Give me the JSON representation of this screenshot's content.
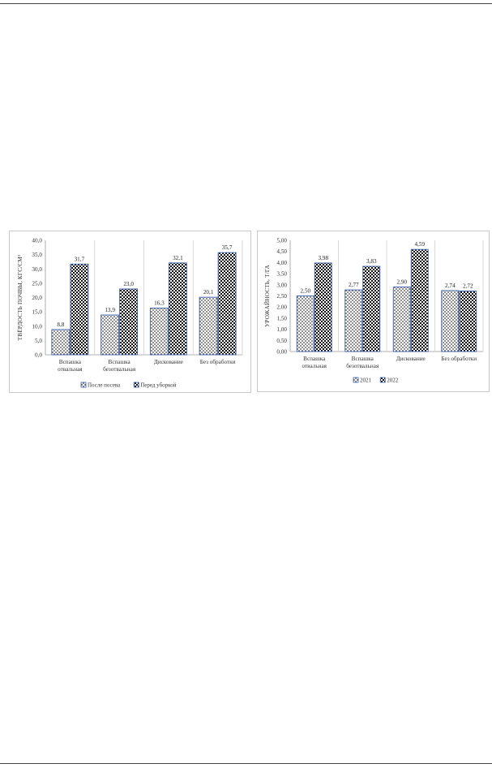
{
  "chart_data": [
    {
      "type": "bar",
      "title": "",
      "xlabel": "",
      "ylabel": "ТВЁРДОСТЬ ПОЧВЫ, КГС/СМ²",
      "ylim": [
        0,
        40
      ],
      "yticks": [
        "0,0",
        "5,0",
        "10,0",
        "15,0",
        "20,0",
        "25,0",
        "30,0",
        "35,0",
        "40,0"
      ],
      "ytick_step": 5,
      "categories": [
        [
          "Вспашка",
          "отвальная"
        ],
        [
          "Вспашка",
          "безотвальная"
        ],
        [
          "Дискование"
        ],
        [
          "Без обработки"
        ]
      ],
      "series": [
        {
          "name": "После посева",
          "values": [
            8.8,
            13.9,
            16.3,
            20.1
          ],
          "labels": [
            "8,8",
            "13,9",
            "16,3",
            "20,1"
          ],
          "pattern": "dots"
        },
        {
          "name": "Перед уборкой",
          "values": [
            31.7,
            23.0,
            32.1,
            35.7
          ],
          "labels": [
            "31,7",
            "23,0",
            "32,1",
            "35,7"
          ],
          "pattern": "checker"
        }
      ],
      "grid": "vertical category separators",
      "legend": "bottom"
    },
    {
      "type": "bar",
      "title": "",
      "xlabel": "",
      "ylabel": "УРОЖАЙНОСТЬ, Т/ГА",
      "ylim": [
        0,
        5
      ],
      "yticks": [
        "0,00",
        "0,50",
        "1,00",
        "1,50",
        "2,00",
        "2,50",
        "3,00",
        "3,50",
        "4,00",
        "4,50",
        "5,00"
      ],
      "ytick_step": 0.5,
      "categories": [
        [
          "Вспашка",
          "отвальная"
        ],
        [
          "Вспашка",
          "безотвальная"
        ],
        [
          "Дискование"
        ],
        [
          "Без обработки"
        ]
      ],
      "series": [
        {
          "name": "2021",
          "values": [
            2.5,
            2.77,
            2.9,
            2.74
          ],
          "labels": [
            "2,50",
            "2,77",
            "2,90",
            "2,74"
          ],
          "pattern": "dots"
        },
        {
          "name": "2022",
          "values": [
            3.98,
            3.83,
            4.59,
            2.72
          ],
          "labels": [
            "3,98",
            "3,83",
            "4,59",
            "2,72"
          ],
          "pattern": "checker"
        }
      ],
      "grid": "vertical category separators",
      "legend": "bottom"
    }
  ]
}
